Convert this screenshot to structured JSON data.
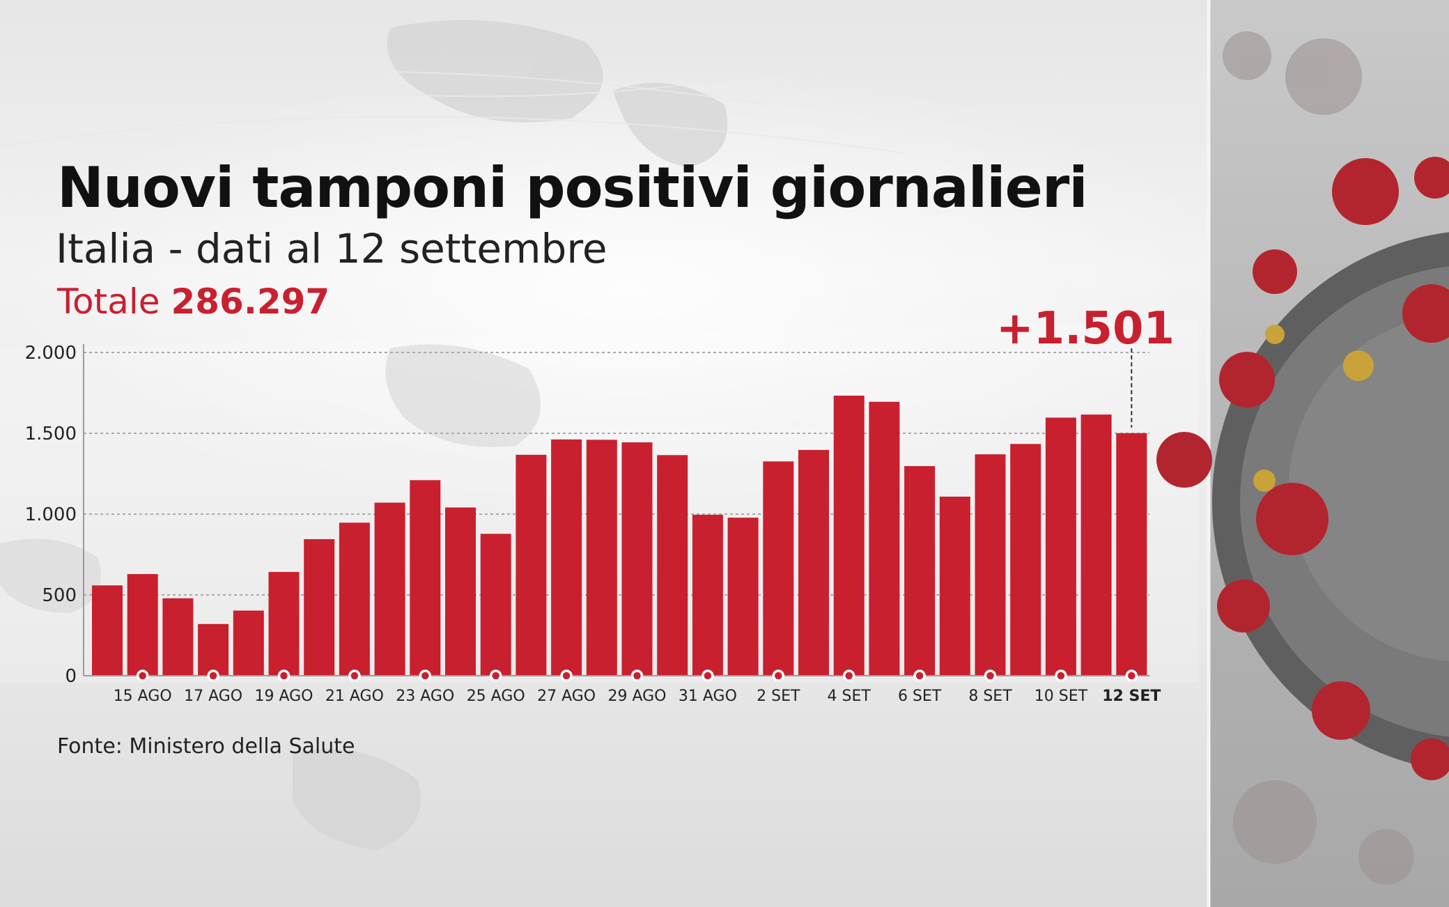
{
  "title": "Nuovi tamponi positivi giornalieri",
  "subtitle": "Italia - dati al 12 settembre",
  "total": {
    "label": "Totale",
    "value": "286.297"
  },
  "source": "Fonte: Ministero della Salute",
  "colors": {
    "bar": "#c8202f",
    "accent": "#c8202f",
    "text": "#111111"
  },
  "chart_data": {
    "type": "bar",
    "title": "Nuovi tamponi positivi giornalieri",
    "subtitle": "Italia - dati al 12 settembre",
    "xlabel": "",
    "ylabel": "",
    "ylim": [
      0,
      2000
    ],
    "yticks": [
      0,
      500,
      1000,
      1500,
      2000
    ],
    "ytick_labels": [
      "0",
      "500",
      "1.000",
      "1.500",
      "2.000"
    ],
    "grid": true,
    "categories": [
      "14 AGO",
      "15 AGO",
      "16 AGO",
      "17 AGO",
      "18 AGO",
      "19 AGO",
      "20 AGO",
      "21 AGO",
      "22 AGO",
      "23 AGO",
      "24 AGO",
      "25 AGO",
      "26 AGO",
      "27 AGO",
      "28 AGO",
      "29 AGO",
      "30 AGO",
      "31 AGO",
      "1 SET",
      "2 SET",
      "3 SET",
      "4 SET",
      "5 SET",
      "6 SET",
      "7 SET",
      "8 SET",
      "9 SET",
      "10 SET",
      "11 SET",
      "12 SET"
    ],
    "values": [
      559,
      629,
      479,
      320,
      403,
      642,
      845,
      947,
      1071,
      1210,
      1041,
      878,
      1367,
      1462,
      1460,
      1444,
      1365,
      996,
      978,
      1326,
      1397,
      1733,
      1695,
      1297,
      1108,
      1370,
      1434,
      1597,
      1616,
      1501
    ],
    "tick_labels": [
      "15 AGO",
      "17 AGO",
      "19 AGO",
      "21 AGO",
      "23 AGO",
      "25 AGO",
      "27 AGO",
      "29 AGO",
      "31 AGO",
      "2 SET",
      "4 SET",
      "6 SET",
      "8 SET",
      "10 SET",
      "12 SET"
    ],
    "highlight_label": "12 SET",
    "callout": "+1.501"
  }
}
